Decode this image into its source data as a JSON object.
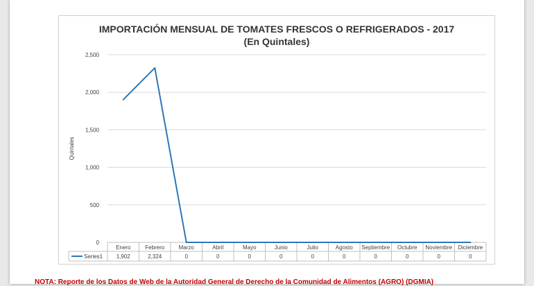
{
  "chart_data": {
    "type": "line",
    "title": "IMPORTACIÓN MENSUAL DE TOMATES FRESCOS O REFRIGERADOS - 2017",
    "subtitle": "(En Quintales)",
    "xlabel": "",
    "ylabel": "Quintales",
    "ylim": [
      0,
      2500
    ],
    "yticks": [
      "0",
      "500",
      "1,000",
      "1,500",
      "2,000",
      "2,500"
    ],
    "grid": true,
    "legend": "data-table",
    "categories": [
      "Enero",
      "Febrero",
      "Marzo",
      "Abril",
      "Mayo",
      "Junio",
      "Julio",
      "Agosto",
      "Septiembre",
      "Octubre",
      "Noviembre",
      "Diciembre"
    ],
    "series": [
      {
        "name": "Series1",
        "values": [
          1902,
          2324,
          0,
          0,
          0,
          0,
          0,
          0,
          0,
          0,
          0,
          0
        ],
        "labels": [
          "1,902",
          "2,324",
          "0",
          "0",
          "0",
          "0",
          "0",
          "0",
          "0",
          "0",
          "0",
          "0"
        ],
        "color": "#2e75b6"
      }
    ]
  },
  "note": "NOTA: Reporte de los Datos de Web de la Autoridad General de Derecho de la Comunidad de Alimentos (AGRO) (DGMIA)"
}
